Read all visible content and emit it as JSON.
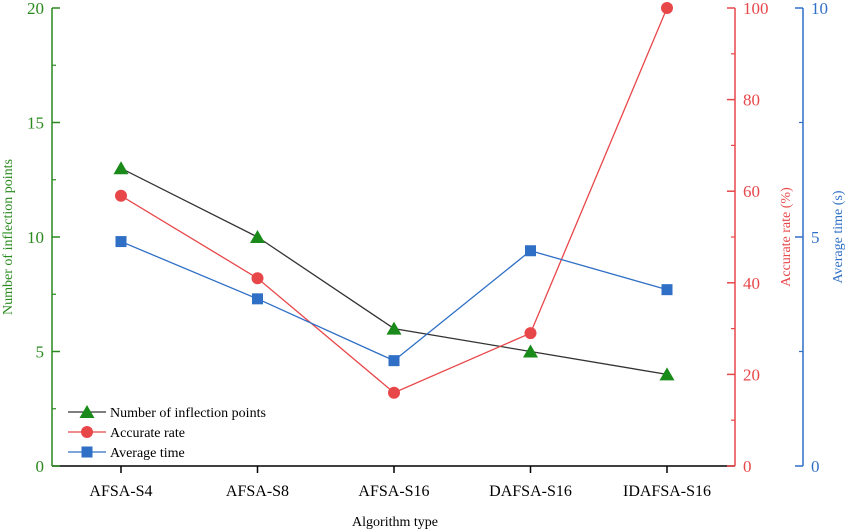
{
  "chart_data": {
    "type": "line",
    "categories": [
      "AFSA-S4",
      "AFSA-S8",
      "AFSA-S16",
      "DAFSA-S16",
      "IDAFSA-S16"
    ],
    "xlabel": "Algorithm type",
    "axes": {
      "left": {
        "label": "Number of inflection points",
        "ylim": [
          0,
          20
        ],
        "ticks": [
          0,
          5,
          10,
          15,
          20
        ],
        "color": "#2a8a1f"
      },
      "right1": {
        "label": "Accurate rate (%)",
        "ylim": [
          0,
          100
        ],
        "ticks": [
          0,
          20,
          40,
          60,
          80,
          100
        ],
        "color": "#e8474a"
      },
      "right2": {
        "label": "Average time (s)",
        "ylim": [
          0,
          10
        ],
        "ticks": [
          0,
          5,
          10
        ],
        "color": "#2f6fc6"
      }
    },
    "series": [
      {
        "name": "Number of inflection points",
        "axis": "left",
        "values": [
          13,
          10,
          6,
          5,
          4
        ],
        "line_color": "#333333",
        "marker_color": "#1a8a1a",
        "marker": "triangle"
      },
      {
        "name": "Accurate rate",
        "axis": "right1",
        "values": [
          59,
          41,
          16,
          29,
          100
        ],
        "line_color": "#e8474a",
        "marker_color": "#e8474a",
        "marker": "circle"
      },
      {
        "name": "Average time",
        "axis": "right2",
        "values": [
          4.9,
          3.65,
          2.3,
          4.7,
          3.85
        ],
        "line_color": "#2f6fc6",
        "marker_color": "#2f6fc6",
        "marker": "square"
      }
    ],
    "legend_position": "bottom-left",
    "grid": false
  }
}
